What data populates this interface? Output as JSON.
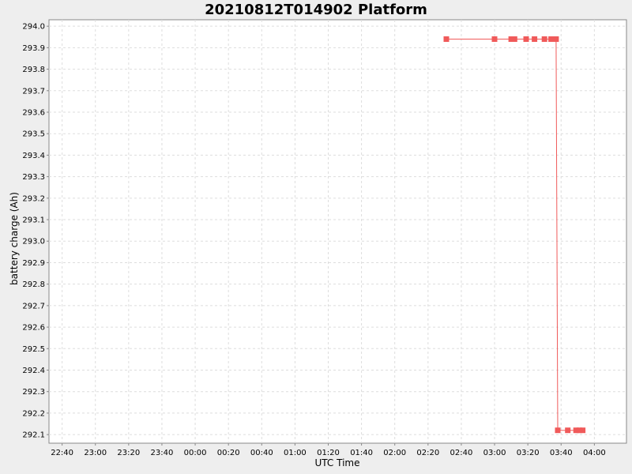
{
  "chart_data": {
    "type": "line",
    "title": "20210812T014902 Platform",
    "xlabel": "UTC Time",
    "ylabel": "battery charge (Ah)",
    "x_tick_labels": [
      "22:40",
      "23:00",
      "23:20",
      "23:40",
      "00:00",
      "00:20",
      "00:40",
      "01:00",
      "01:20",
      "01:40",
      "02:00",
      "02:20",
      "02:40",
      "03:00",
      "03:20",
      "03:40",
      "04:00"
    ],
    "y_tick_labels": [
      "294.0",
      "293.9",
      "293.8",
      "293.7",
      "293.6",
      "293.5",
      "293.4",
      "293.3",
      "293.2",
      "293.1",
      "293.0",
      "292.9",
      "292.8",
      "292.7",
      "292.6",
      "292.5",
      "292.4",
      "292.3",
      "292.2",
      "292.1"
    ],
    "ylim": [
      292.06,
      294.03
    ],
    "grid": true,
    "series": [
      {
        "color": "#f05a5a",
        "x": [
          "02:31",
          "03:00",
          "03:10",
          "03:12",
          "03:19",
          "03:24",
          "03:30",
          "03:34",
          "03:36",
          "03:37",
          "03:38",
          "03:44",
          "03:49",
          "03:51",
          "03:53"
        ],
        "y": [
          293.94,
          293.94,
          293.94,
          293.94,
          293.94,
          293.94,
          293.94,
          293.94,
          293.94,
          293.94,
          292.12,
          292.12,
          292.12,
          292.12,
          292.12
        ]
      }
    ]
  }
}
